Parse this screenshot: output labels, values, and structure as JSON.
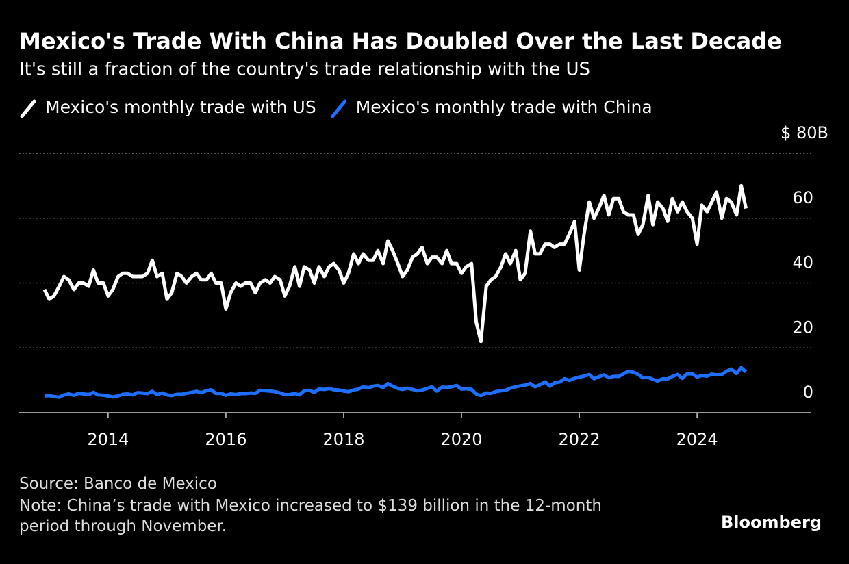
{
  "chart_data": {
    "type": "line",
    "title": "Mexico's Trade With China Has Doubled Over the Last Decade",
    "subtitle": "It's still a fraction of the country's trade relationship with the US",
    "source": "Source: Banco de Mexico",
    "note": "Note: China’s trade with Mexico increased to $139 billion in the 12-month period through November.",
    "brand": "Bloomberg",
    "x": [
      2012.92,
      2013.0,
      2013.08,
      2013.17,
      2013.25,
      2013.33,
      2013.42,
      2013.5,
      2013.58,
      2013.67,
      2013.75,
      2013.83,
      2013.92,
      2014.0,
      2014.08,
      2014.17,
      2014.25,
      2014.33,
      2014.42,
      2014.5,
      2014.58,
      2014.67,
      2014.75,
      2014.83,
      2014.92,
      2015.0,
      2015.08,
      2015.17,
      2015.25,
      2015.33,
      2015.42,
      2015.5,
      2015.58,
      2015.67,
      2015.75,
      2015.83,
      2015.92,
      2016.0,
      2016.08,
      2016.17,
      2016.25,
      2016.33,
      2016.42,
      2016.5,
      2016.58,
      2016.67,
      2016.75,
      2016.83,
      2016.92,
      2017.0,
      2017.08,
      2017.17,
      2017.25,
      2017.33,
      2017.42,
      2017.5,
      2017.58,
      2017.67,
      2017.75,
      2017.83,
      2017.92,
      2018.0,
      2018.08,
      2018.17,
      2018.25,
      2018.33,
      2018.42,
      2018.5,
      2018.58,
      2018.67,
      2018.75,
      2018.83,
      2018.92,
      2019.0,
      2019.08,
      2019.17,
      2019.25,
      2019.33,
      2019.42,
      2019.5,
      2019.58,
      2019.67,
      2019.75,
      2019.83,
      2019.92,
      2020.0,
      2020.08,
      2020.17,
      2020.25,
      2020.33,
      2020.42,
      2020.5,
      2020.58,
      2020.67,
      2020.75,
      2020.83,
      2020.92,
      2021.0,
      2021.08,
      2021.17,
      2021.25,
      2021.33,
      2021.42,
      2021.5,
      2021.58,
      2021.67,
      2021.75,
      2021.83,
      2021.92,
      2022.0,
      2022.08,
      2022.17,
      2022.25,
      2022.33,
      2022.42,
      2022.5,
      2022.58,
      2022.67,
      2022.75,
      2022.83,
      2022.92,
      2023.0,
      2023.08,
      2023.17,
      2023.25,
      2023.33,
      2023.42,
      2023.5,
      2023.58,
      2023.67,
      2023.75,
      2023.83,
      2023.92,
      2024.0,
      2024.08,
      2024.17,
      2024.25,
      2024.33,
      2024.42,
      2024.5,
      2024.58,
      2024.67,
      2024.75,
      2024.83
    ],
    "series": [
      {
        "name": "Mexico's monthly trade with US",
        "color": "#ffffff",
        "values": [
          38,
          35,
          36,
          39,
          42,
          41,
          38,
          40,
          40,
          39,
          44,
          40,
          40,
          36,
          38,
          42,
          43,
          43,
          42,
          42,
          42,
          43,
          47,
          42,
          43,
          35,
          37,
          43,
          42,
          40,
          42,
          43,
          41,
          41,
          43,
          40,
          40,
          32,
          37,
          40,
          39,
          40,
          40,
          37,
          40,
          41,
          40,
          42,
          41,
          36,
          39,
          45,
          39,
          45,
          44,
          40,
          45,
          42,
          45,
          46,
          44,
          40,
          43,
          49,
          46,
          49,
          47,
          47,
          50,
          46,
          53,
          50,
          46,
          42,
          44,
          48,
          49,
          51,
          46,
          48,
          48,
          46,
          50,
          46,
          46,
          43,
          45,
          46,
          28,
          22,
          39,
          41,
          42,
          45,
          49,
          46,
          50,
          41,
          43,
          56,
          49,
          49,
          52,
          52,
          51,
          52,
          52,
          55,
          59,
          44,
          55,
          65,
          60,
          63,
          67,
          61,
          66,
          66,
          62,
          61,
          61,
          55,
          58,
          67,
          58,
          65,
          63,
          59,
          66,
          62,
          65,
          62,
          60,
          52,
          64,
          62,
          65,
          68,
          60,
          66,
          65,
          61,
          70,
          63
        ]
      },
      {
        "name": "Mexico's monthly trade with China",
        "color": "#1f6fff",
        "values": [
          5.2,
          5.3,
          5.0,
          4.8,
          5.5,
          5.8,
          5.4,
          6.0,
          5.8,
          5.6,
          6.3,
          5.5,
          5.4,
          5.2,
          4.9,
          5.2,
          5.7,
          5.8,
          5.5,
          6.2,
          6.1,
          5.9,
          6.6,
          5.6,
          6.1,
          5.5,
          5.3,
          5.7,
          5.7,
          6.0,
          6.3,
          6.6,
          6.2,
          6.8,
          7.1,
          6.0,
          6.0,
          5.4,
          5.8,
          5.6,
          5.9,
          5.9,
          6.1,
          6.0,
          6.9,
          6.8,
          6.7,
          6.5,
          6.1,
          5.6,
          5.6,
          5.9,
          5.5,
          6.8,
          6.9,
          6.3,
          7.3,
          7.2,
          7.5,
          7.1,
          7.0,
          6.7,
          6.5,
          7.0,
          7.3,
          8.0,
          7.7,
          8.2,
          8.4,
          7.8,
          9.0,
          8.2,
          7.5,
          7.2,
          7.6,
          7.2,
          6.8,
          7.0,
          7.5,
          8.0,
          6.7,
          7.9,
          7.8,
          8.0,
          8.4,
          7.3,
          7.4,
          7.2,
          5.8,
          5.3,
          6.1,
          6.0,
          6.5,
          6.8,
          6.9,
          7.6,
          8.0,
          8.3,
          8.5,
          9.0,
          8.0,
          8.6,
          9.5,
          8.2,
          9.2,
          9.5,
          10.5,
          10.0,
          10.6,
          11.0,
          11.3,
          11.8,
          10.5,
          11.1,
          11.7,
          10.8,
          11.2,
          11.2,
          12.0,
          12.8,
          12.5,
          11.8,
          10.8,
          10.9,
          10.3,
          9.8,
          10.5,
          10.4,
          11.2,
          11.8,
          10.6,
          12.0,
          12.0,
          11.0,
          11.5,
          11.3,
          11.9,
          11.7,
          11.8,
          12.8,
          13.5,
          12.1,
          13.9,
          12.6
        ]
      }
    ],
    "xlim": [
      2012.49,
      2025.94
    ],
    "xticks": [
      2014,
      2016,
      2018,
      2020,
      2022,
      2024
    ],
    "ylim": [
      0,
      80
    ],
    "yticks": [
      0,
      20,
      40,
      {
        "value": 80,
        "label": "$ 80B"
      },
      60
    ],
    "grid": true
  }
}
